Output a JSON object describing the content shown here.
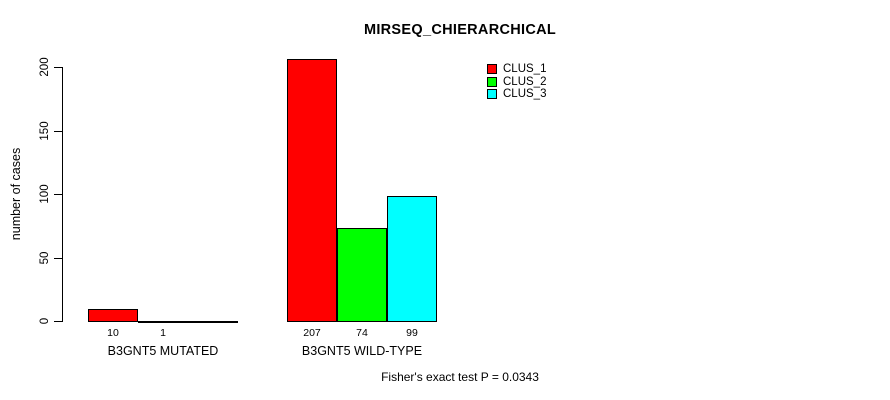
{
  "page": {
    "background_color": "#FFFFFF",
    "text_color": "#000000"
  },
  "chart_data": {
    "type": "bar",
    "title": "MIRSEQ_CHIERARCHICAL",
    "ylabel": "number of cases",
    "xlabel": "",
    "ylim": [
      0,
      215
    ],
    "yticks": [
      0,
      50,
      100,
      150,
      200
    ],
    "grid": false,
    "legend_position": "top-right",
    "axis_color": "#000000",
    "bar_border_color": "#000000",
    "series": [
      {
        "name": "CLUS_1",
        "color": "#FF0000"
      },
      {
        "name": "CLUS_2",
        "color": "#00FF00"
      },
      {
        "name": "CLUS_3",
        "color": "#00FFFF"
      }
    ],
    "groups": [
      {
        "label": "B3GNT5 MUTATED",
        "values": [
          10,
          1,
          0
        ],
        "value_labels": [
          "10",
          "1",
          ""
        ]
      },
      {
        "label": "B3GNT5 WILD-TYPE",
        "values": [
          207,
          74,
          99
        ],
        "value_labels": [
          "207",
          "74",
          "99"
        ]
      }
    ],
    "annotation": "Fisher's exact test P = 0.0343"
  }
}
